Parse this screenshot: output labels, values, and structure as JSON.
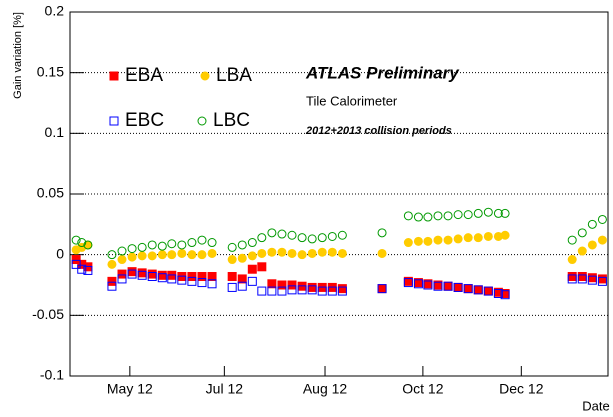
{
  "chart_data": {
    "type": "scatter",
    "y_label": "Gain variation [%]",
    "x_label": "Date",
    "annotations": [
      "ATLAS Preliminary",
      "Tile Calorimeter",
      "2012+2013 collision periods"
    ],
    "x": [
      4.04,
      4.14,
      4.25,
      4.68,
      4.86,
      5.04,
      5.22,
      5.4,
      5.58,
      5.75,
      5.93,
      6.11,
      6.29,
      6.47,
      6.83,
      7.01,
      7.19,
      7.36,
      7.54,
      7.72,
      7.9,
      8.08,
      8.26,
      8.44,
      8.62,
      8.8,
      9.51,
      9.98,
      10.16,
      10.33,
      10.51,
      10.69,
      10.87,
      11.05,
      11.23,
      11.41,
      11.59,
      11.71,
      12.91,
      13.09,
      13.27,
      13.45
    ],
    "series": [
      {
        "name": "EBA",
        "color": "#ff0000",
        "marker": "square",
        "filled": true,
        "values": [
          -0.004,
          -0.008,
          -0.01,
          -0.022,
          -0.016,
          -0.014,
          -0.015,
          -0.016,
          -0.017,
          -0.017,
          -0.018,
          -0.018,
          -0.018,
          -0.018,
          -0.018,
          -0.02,
          -0.012,
          -0.01,
          -0.024,
          -0.025,
          -0.025,
          -0.026,
          -0.027,
          -0.027,
          -0.027,
          -0.028,
          -0.028,
          -0.022,
          -0.023,
          -0.024,
          -0.025,
          -0.026,
          -0.027,
          -0.028,
          -0.029,
          -0.03,
          -0.031,
          -0.032,
          -0.018,
          -0.018,
          -0.019,
          -0.02
        ]
      },
      {
        "name": "LBA",
        "color": "#ffcc00",
        "marker": "circle",
        "filled": true,
        "values": [
          0.004,
          0.006,
          0.008,
          -0.008,
          -0.004,
          -0.002,
          -0.001,
          -0.001,
          0,
          0,
          0.001,
          0,
          0,
          0.001,
          -0.004,
          -0.003,
          -0.001,
          0.001,
          0.002,
          0.002,
          0.001,
          0,
          0.001,
          0.002,
          0.002,
          0.001,
          0.001,
          0.01,
          0.011,
          0.011,
          0.012,
          0.012,
          0.013,
          0.014,
          0.014,
          0.015,
          0.015,
          0.016,
          -0.004,
          0.003,
          0.008,
          0.012
        ]
      },
      {
        "name": "EBC",
        "color": "#0000ff",
        "marker": "square",
        "filled": false,
        "values": [
          -0.008,
          -0.012,
          -0.013,
          -0.026,
          -0.02,
          -0.016,
          -0.017,
          -0.018,
          -0.019,
          -0.02,
          -0.021,
          -0.022,
          -0.023,
          -0.024,
          -0.027,
          -0.026,
          -0.022,
          -0.03,
          -0.03,
          -0.03,
          -0.029,
          -0.029,
          -0.029,
          -0.03,
          -0.03,
          -0.03,
          -0.028,
          -0.023,
          -0.024,
          -0.025,
          -0.026,
          -0.026,
          -0.027,
          -0.028,
          -0.029,
          -0.03,
          -0.032,
          -0.033,
          -0.02,
          -0.02,
          -0.021,
          -0.022
        ]
      },
      {
        "name": "LBC",
        "color": "#009900",
        "marker": "circle",
        "filled": false,
        "values": [
          0.012,
          0.01,
          0.008,
          0,
          0.003,
          0.005,
          0.006,
          0.008,
          0.007,
          0.009,
          0.008,
          0.01,
          0.012,
          0.01,
          0.006,
          0.008,
          0.01,
          0.014,
          0.018,
          0.017,
          0.016,
          0.014,
          0.013,
          0.014,
          0.015,
          0.016,
          0.018,
          0.032,
          0.031,
          0.031,
          0.032,
          0.032,
          0.033,
          0.033,
          0.034,
          0.035,
          0.034,
          0.034,
          0.012,
          0.018,
          0.025,
          0.029
        ]
      }
    ],
    "xlim": [
      3.93,
      13.55
    ],
    "xticks": [
      {
        "value": 5.0,
        "label": "May 12"
      },
      {
        "value": 6.69,
        "label": "Jul 12"
      },
      {
        "value": 8.49,
        "label": "Aug 12"
      },
      {
        "value": 10.24,
        "label": "Oct 12"
      },
      {
        "value": 12.0,
        "label": "Dec 12"
      }
    ],
    "ylim": [
      -0.1,
      0.2
    ],
    "yticks": [
      -0.1,
      -0.05,
      0,
      0.05,
      0.1,
      0.15,
      0.2
    ],
    "grid": "y"
  }
}
